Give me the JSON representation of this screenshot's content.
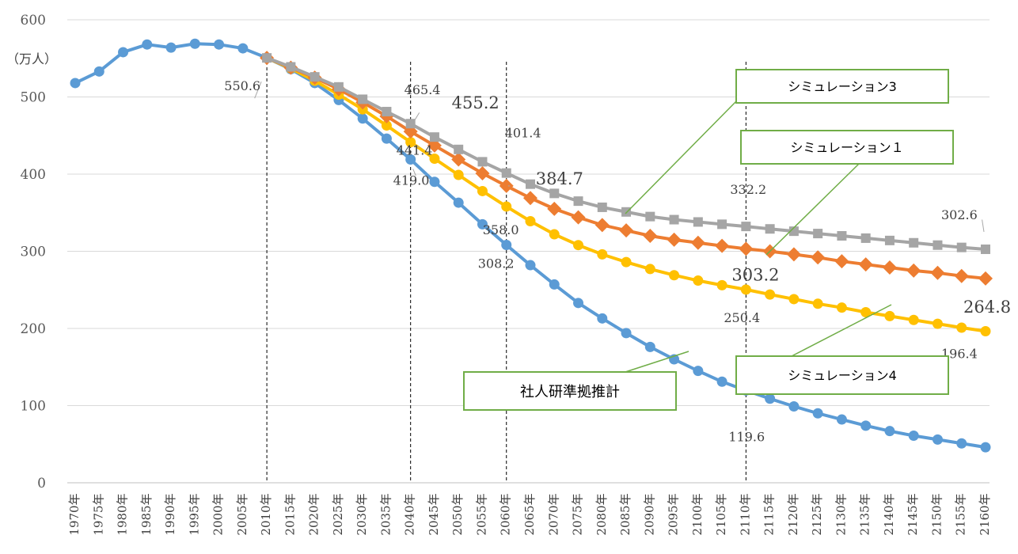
{
  "chart_data": {
    "type": "line",
    "unit_label": "（万人）",
    "ylim": [
      0,
      600
    ],
    "yticks": [
      0,
      100,
      200,
      300,
      400,
      500,
      600
    ],
    "grid": true,
    "legend": "callouts",
    "x": [
      "1970年",
      "1975年",
      "1980年",
      "1985年",
      "1990年",
      "1995年",
      "2000年",
      "2005年",
      "2010年",
      "2015年",
      "2020年",
      "2025年",
      "2030年",
      "2035年",
      "2040年",
      "2045年",
      "2050年",
      "2055年",
      "2060年",
      "2065年",
      "2070年",
      "2075年",
      "2080年",
      "2085年",
      "2090年",
      "2095年",
      "2100年",
      "2105年",
      "2110年",
      "2115年",
      "2120年",
      "2125年",
      "2130年",
      "2135年",
      "2140年",
      "2145年",
      "2150年",
      "2155年",
      "2160年"
    ],
    "reference_lines": [
      "2010年",
      "2040年",
      "2060年",
      "2110年"
    ],
    "series": [
      {
        "name": "社人研準拠推計",
        "color": "#5B9BD5",
        "marker": "circle",
        "values": [
          518,
          533,
          558,
          568,
          564,
          569,
          568,
          563,
          550.6,
          536,
          518,
          496,
          472,
          446,
          419.0,
          390,
          363,
          335,
          308.2,
          282,
          257,
          233,
          213,
          194,
          176,
          160,
          145,
          131,
          119.6,
          109,
          99,
          90,
          82,
          74,
          67,
          61,
          56,
          51,
          46
        ]
      },
      {
        "name": "シミュレーション１",
        "color": "#ED7D31",
        "marker": "diamond",
        "values": [
          null,
          null,
          null,
          null,
          null,
          null,
          null,
          null,
          550.6,
          538,
          525,
          510,
          493,
          475,
          455.2,
          437,
          419,
          401,
          384.7,
          369,
          355,
          344,
          334,
          327,
          320,
          315,
          311,
          307,
          303.2,
          300,
          296,
          292,
          287,
          283,
          279,
          275,
          272,
          268,
          264.8
        ]
      },
      {
        "name": "シミュレーション3",
        "color": "#A5A5A5",
        "marker": "square",
        "values": [
          null,
          null,
          null,
          null,
          null,
          null,
          null,
          null,
          550.6,
          539,
          526,
          513,
          497,
          481,
          465.4,
          448,
          432,
          416,
          401.4,
          387,
          375,
          365,
          357,
          351,
          345,
          341,
          338,
          335,
          332.2,
          329,
          326,
          323,
          320,
          317,
          314,
          311,
          308,
          305,
          302.6
        ]
      },
      {
        "name": "シミュレーション4",
        "color": "#FFC000",
        "marker": "circle",
        "values": [
          null,
          null,
          null,
          null,
          null,
          null,
          null,
          null,
          550.6,
          537,
          521,
          503,
          484,
          463,
          441.4,
          420,
          399,
          378,
          358.0,
          339,
          322,
          308,
          296,
          286,
          277,
          269,
          262,
          256,
          250.4,
          244,
          238,
          232,
          227,
          221,
          216,
          211,
          206,
          201,
          196.4
        ]
      }
    ],
    "annotations": [
      {
        "text": "550.6",
        "series": 0,
        "x": "2010年",
        "size": "normal"
      },
      {
        "text": "465.4",
        "series": 2,
        "x": "2040年",
        "size": "normal"
      },
      {
        "text": "455.2",
        "series": 1,
        "x": "2040年",
        "size": "large"
      },
      {
        "text": "441.4",
        "series": 3,
        "x": "2040年",
        "size": "normal"
      },
      {
        "text": "419.0",
        "series": 0,
        "x": "2040年",
        "size": "normal"
      },
      {
        "text": "401.4",
        "series": 2,
        "x": "2060年",
        "size": "normal"
      },
      {
        "text": "384.7",
        "series": 1,
        "x": "2060年",
        "size": "large"
      },
      {
        "text": "358.0",
        "series": 3,
        "x": "2060年",
        "size": "normal"
      },
      {
        "text": "308.2",
        "series": 0,
        "x": "2060年",
        "size": "normal"
      },
      {
        "text": "332.2",
        "series": 2,
        "x": "2110年",
        "size": "normal"
      },
      {
        "text": "303.2",
        "series": 1,
        "x": "2110年",
        "size": "large"
      },
      {
        "text": "250.4",
        "series": 3,
        "x": "2110年",
        "size": "normal"
      },
      {
        "text": "119.6",
        "series": 0,
        "x": "2110年",
        "size": "normal"
      },
      {
        "text": "302.6",
        "series": 2,
        "x": "2160年",
        "size": "normal"
      },
      {
        "text": "264.8",
        "series": 1,
        "x": "2160年",
        "size": "large"
      },
      {
        "text": "196.4",
        "series": 3,
        "x": "2160年",
        "size": "normal"
      }
    ],
    "callouts": [
      {
        "text": "シミュレーション3",
        "series": 2
      },
      {
        "text": "シミュレーション１",
        "series": 1
      },
      {
        "text": "シミュレーション4",
        "series": 3
      },
      {
        "text": "社人研準拠推計",
        "series": 0
      }
    ]
  }
}
